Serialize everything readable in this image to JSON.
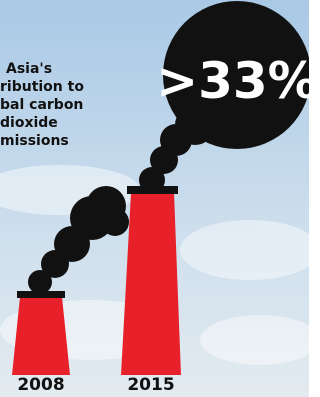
{
  "caption": {
    "lines": [
      "Asia's",
      "ribution to",
      "bal carbon",
      "dioxide",
      "missions"
    ]
  },
  "stacks": [
    {
      "year": "2008"
    },
    {
      "year": "2015",
      "label": ">33%"
    }
  ]
}
